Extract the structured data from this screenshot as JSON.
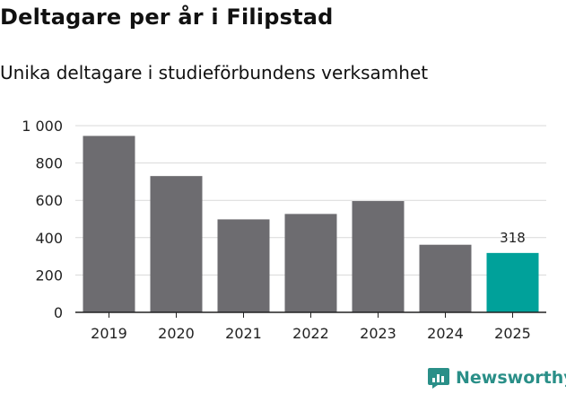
{
  "title": "Deltagare per år i Filipstad",
  "subtitle": "Unika deltagare i studieförbundens verksamhet",
  "brand": {
    "name": "Newsworthy",
    "color": "#2a8f88",
    "icon": "newsworthy-logo-icon"
  },
  "colors": {
    "bar": "#6d6c70",
    "highlight": "#00a19a",
    "grid": "#d9d9d9",
    "axis": "#222222"
  },
  "chart_data": {
    "type": "bar",
    "title": "Deltagare per år i Filipstad",
    "subtitle": "Unika deltagare i studieförbundens verksamhet",
    "xlabel": "",
    "ylabel": "",
    "categories": [
      "2019",
      "2020",
      "2021",
      "2022",
      "2023",
      "2024",
      "2025"
    ],
    "values": [
      945,
      730,
      498,
      527,
      596,
      362,
      318
    ],
    "highlight_index": 6,
    "data_labels": [
      {
        "index": 6,
        "text": "318"
      }
    ],
    "ylim": [
      0,
      1000
    ],
    "yticks": [
      0,
      200,
      400,
      600,
      800,
      1000
    ],
    "ytick_labels": [
      "0",
      "200",
      "400",
      "600",
      "800",
      "1 000"
    ],
    "grid": true,
    "legend": "none"
  }
}
